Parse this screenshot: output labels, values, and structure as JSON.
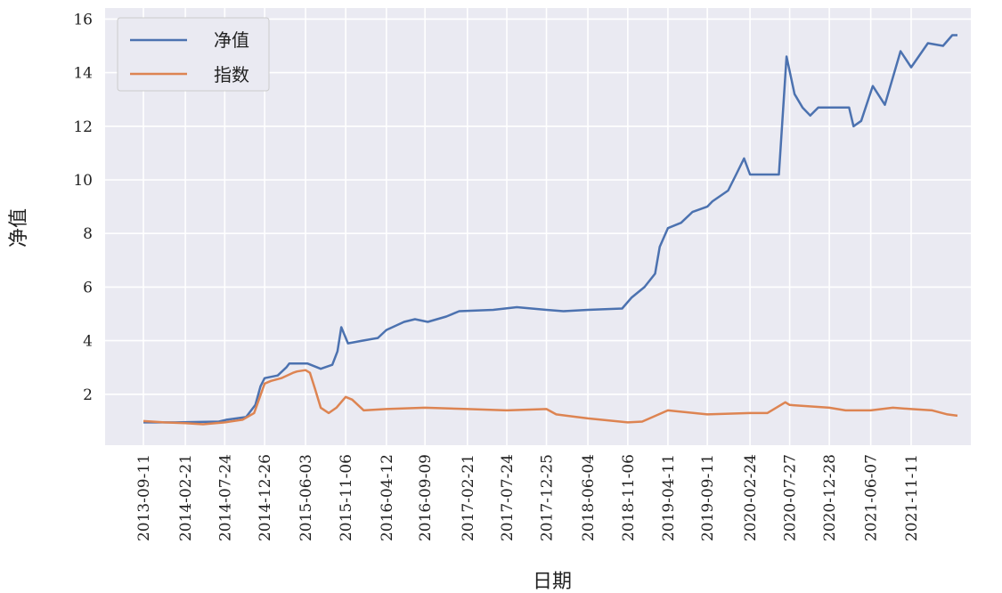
{
  "chart_data": {
    "type": "line",
    "title": "",
    "xlabel": "日期",
    "ylabel": "净值",
    "ylim": [
      0,
      16
    ],
    "grid": true,
    "legend_position": "top-left",
    "y_ticks": [
      2,
      4,
      6,
      8,
      10,
      12,
      14,
      16
    ],
    "y_tick_labels": [
      "2",
      "4",
      "6",
      "8",
      "10",
      "12",
      "14",
      "16"
    ],
    "x_ticks": [
      "2013-09-11",
      "2014-02-21",
      "2014-07-24",
      "2014-12-26",
      "2015-06-03",
      "2015-11-06",
      "2016-04-12",
      "2016-09-09",
      "2017-02-21",
      "2017-07-24",
      "2017-12-25",
      "2018-06-04",
      "2018-11-06",
      "2019-04-11",
      "2019-09-11",
      "2020-02-24",
      "2020-07-27",
      "2020-12-28",
      "2021-06-07",
      "2021-11-11"
    ],
    "x_range": [
      "2013-09-11",
      "2022-05-10"
    ],
    "series": [
      {
        "name": "净值",
        "color": "#4c72b0",
        "points": [
          [
            "2013-09-11",
            0.95
          ],
          [
            "2014-01-15",
            0.95
          ],
          [
            "2014-03-01",
            0.96
          ],
          [
            "2014-07-01",
            0.98
          ],
          [
            "2014-08-01",
            1.05
          ],
          [
            "2014-10-15",
            1.15
          ],
          [
            "2014-11-20",
            1.6
          ],
          [
            "2014-12-10",
            2.3
          ],
          [
            "2014-12-26",
            2.6
          ],
          [
            "2015-02-15",
            2.7
          ],
          [
            "2015-03-20",
            3.0
          ],
          [
            "2015-04-01",
            3.15
          ],
          [
            "2015-06-10",
            3.15
          ],
          [
            "2015-08-01",
            2.95
          ],
          [
            "2015-09-15",
            3.1
          ],
          [
            "2015-10-05",
            3.6
          ],
          [
            "2015-10-20",
            4.5
          ],
          [
            "2015-11-15",
            3.9
          ],
          [
            "2016-01-10",
            4.0
          ],
          [
            "2016-03-10",
            4.1
          ],
          [
            "2016-04-12",
            4.4
          ],
          [
            "2016-06-20",
            4.7
          ],
          [
            "2016-08-01",
            4.8
          ],
          [
            "2016-09-20",
            4.7
          ],
          [
            "2016-12-01",
            4.9
          ],
          [
            "2017-01-20",
            5.1
          ],
          [
            "2017-06-01",
            5.15
          ],
          [
            "2017-09-01",
            5.25
          ],
          [
            "2017-12-25",
            5.15
          ],
          [
            "2018-03-01",
            5.1
          ],
          [
            "2018-06-04",
            5.15
          ],
          [
            "2018-10-15",
            5.2
          ],
          [
            "2018-11-20",
            5.6
          ],
          [
            "2019-01-10",
            6.0
          ],
          [
            "2019-02-20",
            6.5
          ],
          [
            "2019-03-10",
            7.5
          ],
          [
            "2019-04-11",
            8.2
          ],
          [
            "2019-06-01",
            8.4
          ],
          [
            "2019-07-15",
            8.8
          ],
          [
            "2019-09-11",
            9.0
          ],
          [
            "2019-10-01",
            9.2
          ],
          [
            "2019-12-01",
            9.6
          ],
          [
            "2020-01-01",
            10.2
          ],
          [
            "2020-02-01",
            10.8
          ],
          [
            "2020-02-24",
            10.2
          ],
          [
            "2020-06-15",
            10.2
          ],
          [
            "2020-07-15",
            14.6
          ],
          [
            "2020-08-15",
            13.2
          ],
          [
            "2020-09-15",
            12.7
          ],
          [
            "2020-10-15",
            12.4
          ],
          [
            "2020-11-15",
            12.7
          ],
          [
            "2021-01-01",
            12.7
          ],
          [
            "2021-03-15",
            12.7
          ],
          [
            "2021-04-01",
            12.0
          ],
          [
            "2021-05-01",
            12.2
          ],
          [
            "2021-06-15",
            13.5
          ],
          [
            "2021-08-01",
            12.8
          ],
          [
            "2021-10-01",
            14.8
          ],
          [
            "2021-11-11",
            14.2
          ],
          [
            "2022-01-15",
            15.1
          ],
          [
            "2022-03-15",
            15.0
          ],
          [
            "2022-04-20",
            15.4
          ],
          [
            "2022-05-10",
            15.4
          ]
        ]
      },
      {
        "name": "指数",
        "color": "#dd8452",
        "points": [
          [
            "2013-09-11",
            1.0
          ],
          [
            "2013-12-01",
            0.95
          ],
          [
            "2014-02-21",
            0.92
          ],
          [
            "2014-05-01",
            0.88
          ],
          [
            "2014-07-24",
            0.95
          ],
          [
            "2014-10-01",
            1.05
          ],
          [
            "2014-11-15",
            1.3
          ],
          [
            "2014-12-26",
            2.4
          ],
          [
            "2015-01-20",
            2.5
          ],
          [
            "2015-03-01",
            2.6
          ],
          [
            "2015-04-15",
            2.8
          ],
          [
            "2015-05-01",
            2.85
          ],
          [
            "2015-06-03",
            2.9
          ],
          [
            "2015-06-20",
            2.8
          ],
          [
            "2015-07-10",
            2.2
          ],
          [
            "2015-08-01",
            1.5
          ],
          [
            "2015-09-01",
            1.3
          ],
          [
            "2015-10-01",
            1.5
          ],
          [
            "2015-11-06",
            1.9
          ],
          [
            "2015-12-01",
            1.8
          ],
          [
            "2016-01-15",
            1.4
          ],
          [
            "2016-04-12",
            1.45
          ],
          [
            "2016-09-09",
            1.5
          ],
          [
            "2017-02-21",
            1.45
          ],
          [
            "2017-07-24",
            1.4
          ],
          [
            "2017-12-25",
            1.45
          ],
          [
            "2018-02-01",
            1.25
          ],
          [
            "2018-06-04",
            1.1
          ],
          [
            "2018-11-06",
            0.95
          ],
          [
            "2019-01-01",
            0.98
          ],
          [
            "2019-04-11",
            1.4
          ],
          [
            "2019-09-11",
            1.25
          ],
          [
            "2020-02-24",
            1.3
          ],
          [
            "2020-05-01",
            1.3
          ],
          [
            "2020-07-10",
            1.7
          ],
          [
            "2020-07-27",
            1.6
          ],
          [
            "2020-12-28",
            1.5
          ],
          [
            "2021-03-01",
            1.4
          ],
          [
            "2021-06-07",
            1.4
          ],
          [
            "2021-09-01",
            1.5
          ],
          [
            "2021-11-11",
            1.45
          ],
          [
            "2022-02-01",
            1.4
          ],
          [
            "2022-04-01",
            1.25
          ],
          [
            "2022-05-10",
            1.2
          ]
        ]
      }
    ]
  }
}
